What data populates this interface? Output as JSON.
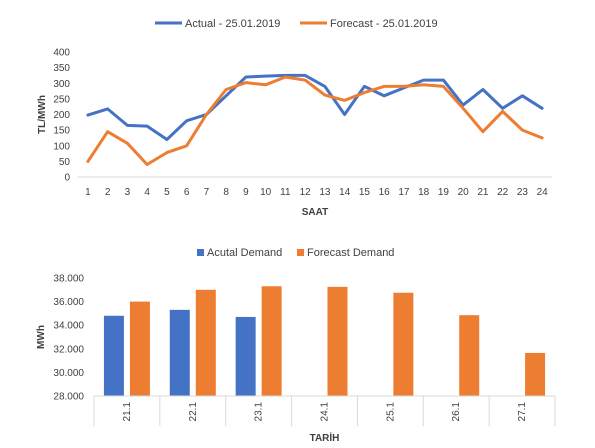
{
  "chart_data": [
    {
      "type": "line",
      "title": "",
      "xlabel": "SAAT",
      "ylabel": "TL/MWh",
      "ylim": [
        0,
        400
      ],
      "yticks": [
        "0",
        "50",
        "100",
        "150",
        "200",
        "250",
        "300",
        "350",
        "400"
      ],
      "categories": [
        "1",
        "2",
        "3",
        "4",
        "5",
        "6",
        "7",
        "8",
        "9",
        "10",
        "11",
        "12",
        "13",
        "14",
        "15",
        "16",
        "17",
        "18",
        "19",
        "20",
        "21",
        "22",
        "23",
        "24"
      ],
      "legend_position": "top",
      "grid": false,
      "series": [
        {
          "name": "Actual - 25.01.2019",
          "color": "#4472C4",
          "values": [
            198,
            218,
            165,
            163,
            120,
            180,
            200,
            260,
            320,
            323,
            325,
            325,
            290,
            200,
            290,
            260,
            285,
            310,
            310,
            230,
            280,
            220,
            260,
            220
          ]
        },
        {
          "name": "Forecast - 25.01.2019",
          "color": "#ED7D31",
          "values": [
            50,
            145,
            108,
            40,
            78,
            100,
            200,
            280,
            302,
            295,
            320,
            310,
            262,
            245,
            270,
            290,
            290,
            295,
            290,
            220,
            145,
            210,
            150,
            125
          ]
        }
      ]
    },
    {
      "type": "bar",
      "title": "",
      "xlabel": "TARİH",
      "ylabel": "MWh",
      "ylim": [
        28000,
        38000
      ],
      "yticks": [
        "28.000",
        "30.000",
        "32.000",
        "34.000",
        "36.000",
        "38.000"
      ],
      "categories": [
        "21.1",
        "22.1",
        "23.1",
        "24.1",
        "25.1",
        "26.1",
        "27.1"
      ],
      "legend_position": "top",
      "grid": false,
      "series": [
        {
          "name": "Acutal Demand",
          "color": "#4472C4",
          "values": [
            34800,
            35300,
            34700,
            null,
            null,
            null,
            null
          ]
        },
        {
          "name": "Forecast Demand",
          "color": "#ED7D31",
          "values": [
            36000,
            37000,
            37300,
            37250,
            36750,
            34850,
            31650
          ]
        }
      ]
    }
  ]
}
